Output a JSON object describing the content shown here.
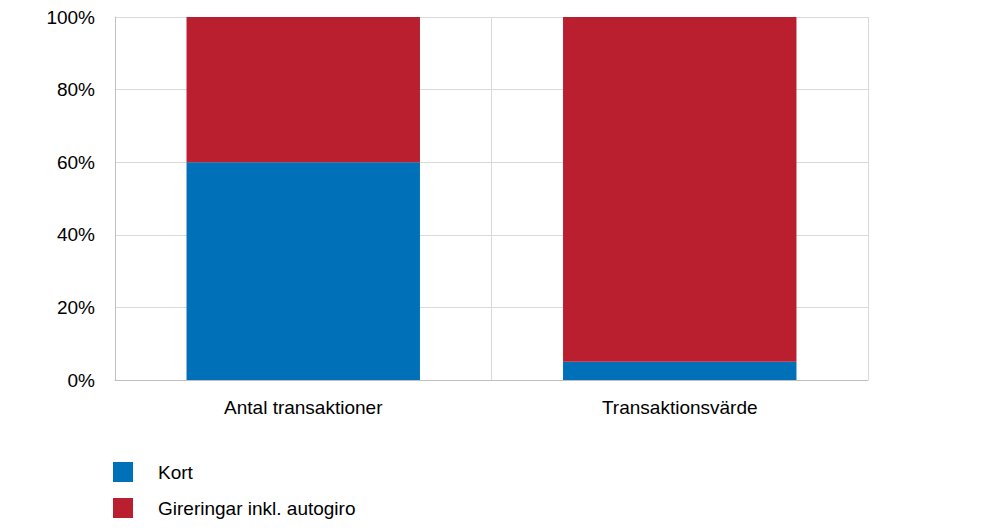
{
  "chart_data": {
    "type": "bar",
    "stacked": true,
    "grid": true,
    "legend": "bottom-left",
    "categories": [
      "Antal transaktioner",
      "Transaktionsvärde"
    ],
    "series": [
      {
        "name": "Kort",
        "color": "#0070b8",
        "values": [
          60,
          5
        ]
      },
      {
        "name": "Gireringar inkl. autogiro",
        "color": "#b91f2e",
        "values": [
          40,
          95
        ]
      }
    ],
    "ylim": [
      0,
      100
    ],
    "yticks": [
      {
        "value": 0,
        "label": "0%"
      },
      {
        "value": 20,
        "label": "20%"
      },
      {
        "value": 40,
        "label": "40%"
      },
      {
        "value": 60,
        "label": "60%"
      },
      {
        "value": 80,
        "label": "80%"
      },
      {
        "value": 100,
        "label": "100%"
      }
    ]
  }
}
